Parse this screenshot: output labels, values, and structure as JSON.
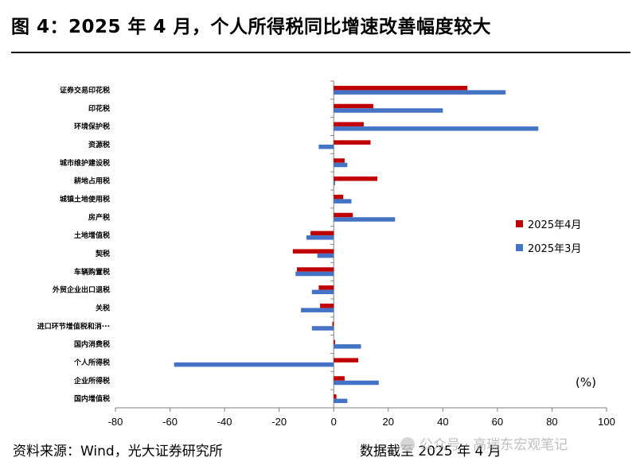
{
  "figure": {
    "title": "图 4：2025 年 4 月，个人所得税同比增速改善幅度较大",
    "unit": "(%)",
    "source": "资料来源：Wind，光大证券研究所",
    "date_note": "数据截至 2025 年 4 月",
    "watermark": "公众号 · 高瑞东宏观笔记"
  },
  "colors": {
    "april": "#C00000",
    "march": "#4472C4"
  },
  "chart_data": {
    "type": "bar",
    "orientation": "horizontal",
    "categories": [
      "证券交易印花税",
      "印花税",
      "环境保护税",
      "资源税",
      "城市维护建设税",
      "耕地占用税",
      "城镇土地使用税",
      "房产税",
      "土地增值税",
      "契税",
      "车辆购置税",
      "外贸企业出口退税",
      "关税",
      "进口环节增值税和消···",
      "国内消费税",
      "个人所得税",
      "企业所得税",
      "国内增值税"
    ],
    "series": [
      {
        "name": "2025年4月",
        "values": [
          49,
          14.5,
          11,
          13.5,
          4,
          16,
          3.5,
          7,
          -8.5,
          -15,
          -13.5,
          -5.5,
          -5,
          -0.5,
          0.5,
          9,
          4,
          1
        ]
      },
      {
        "name": "2025年3月",
        "values": [
          63,
          40,
          75,
          -5.5,
          5,
          0.5,
          6.5,
          22.5,
          -10,
          -6,
          -14,
          -8,
          -12,
          -8,
          10,
          -58.5,
          16.5,
          5
        ]
      }
    ],
    "xlim": [
      -80,
      100
    ],
    "xticks": [
      "-80",
      "-60",
      "-40",
      "-20",
      "0",
      "20",
      "40",
      "60",
      "80",
      "100"
    ],
    "xlabel": "",
    "ylabel": "",
    "legend_position": "right",
    "grid": false
  }
}
